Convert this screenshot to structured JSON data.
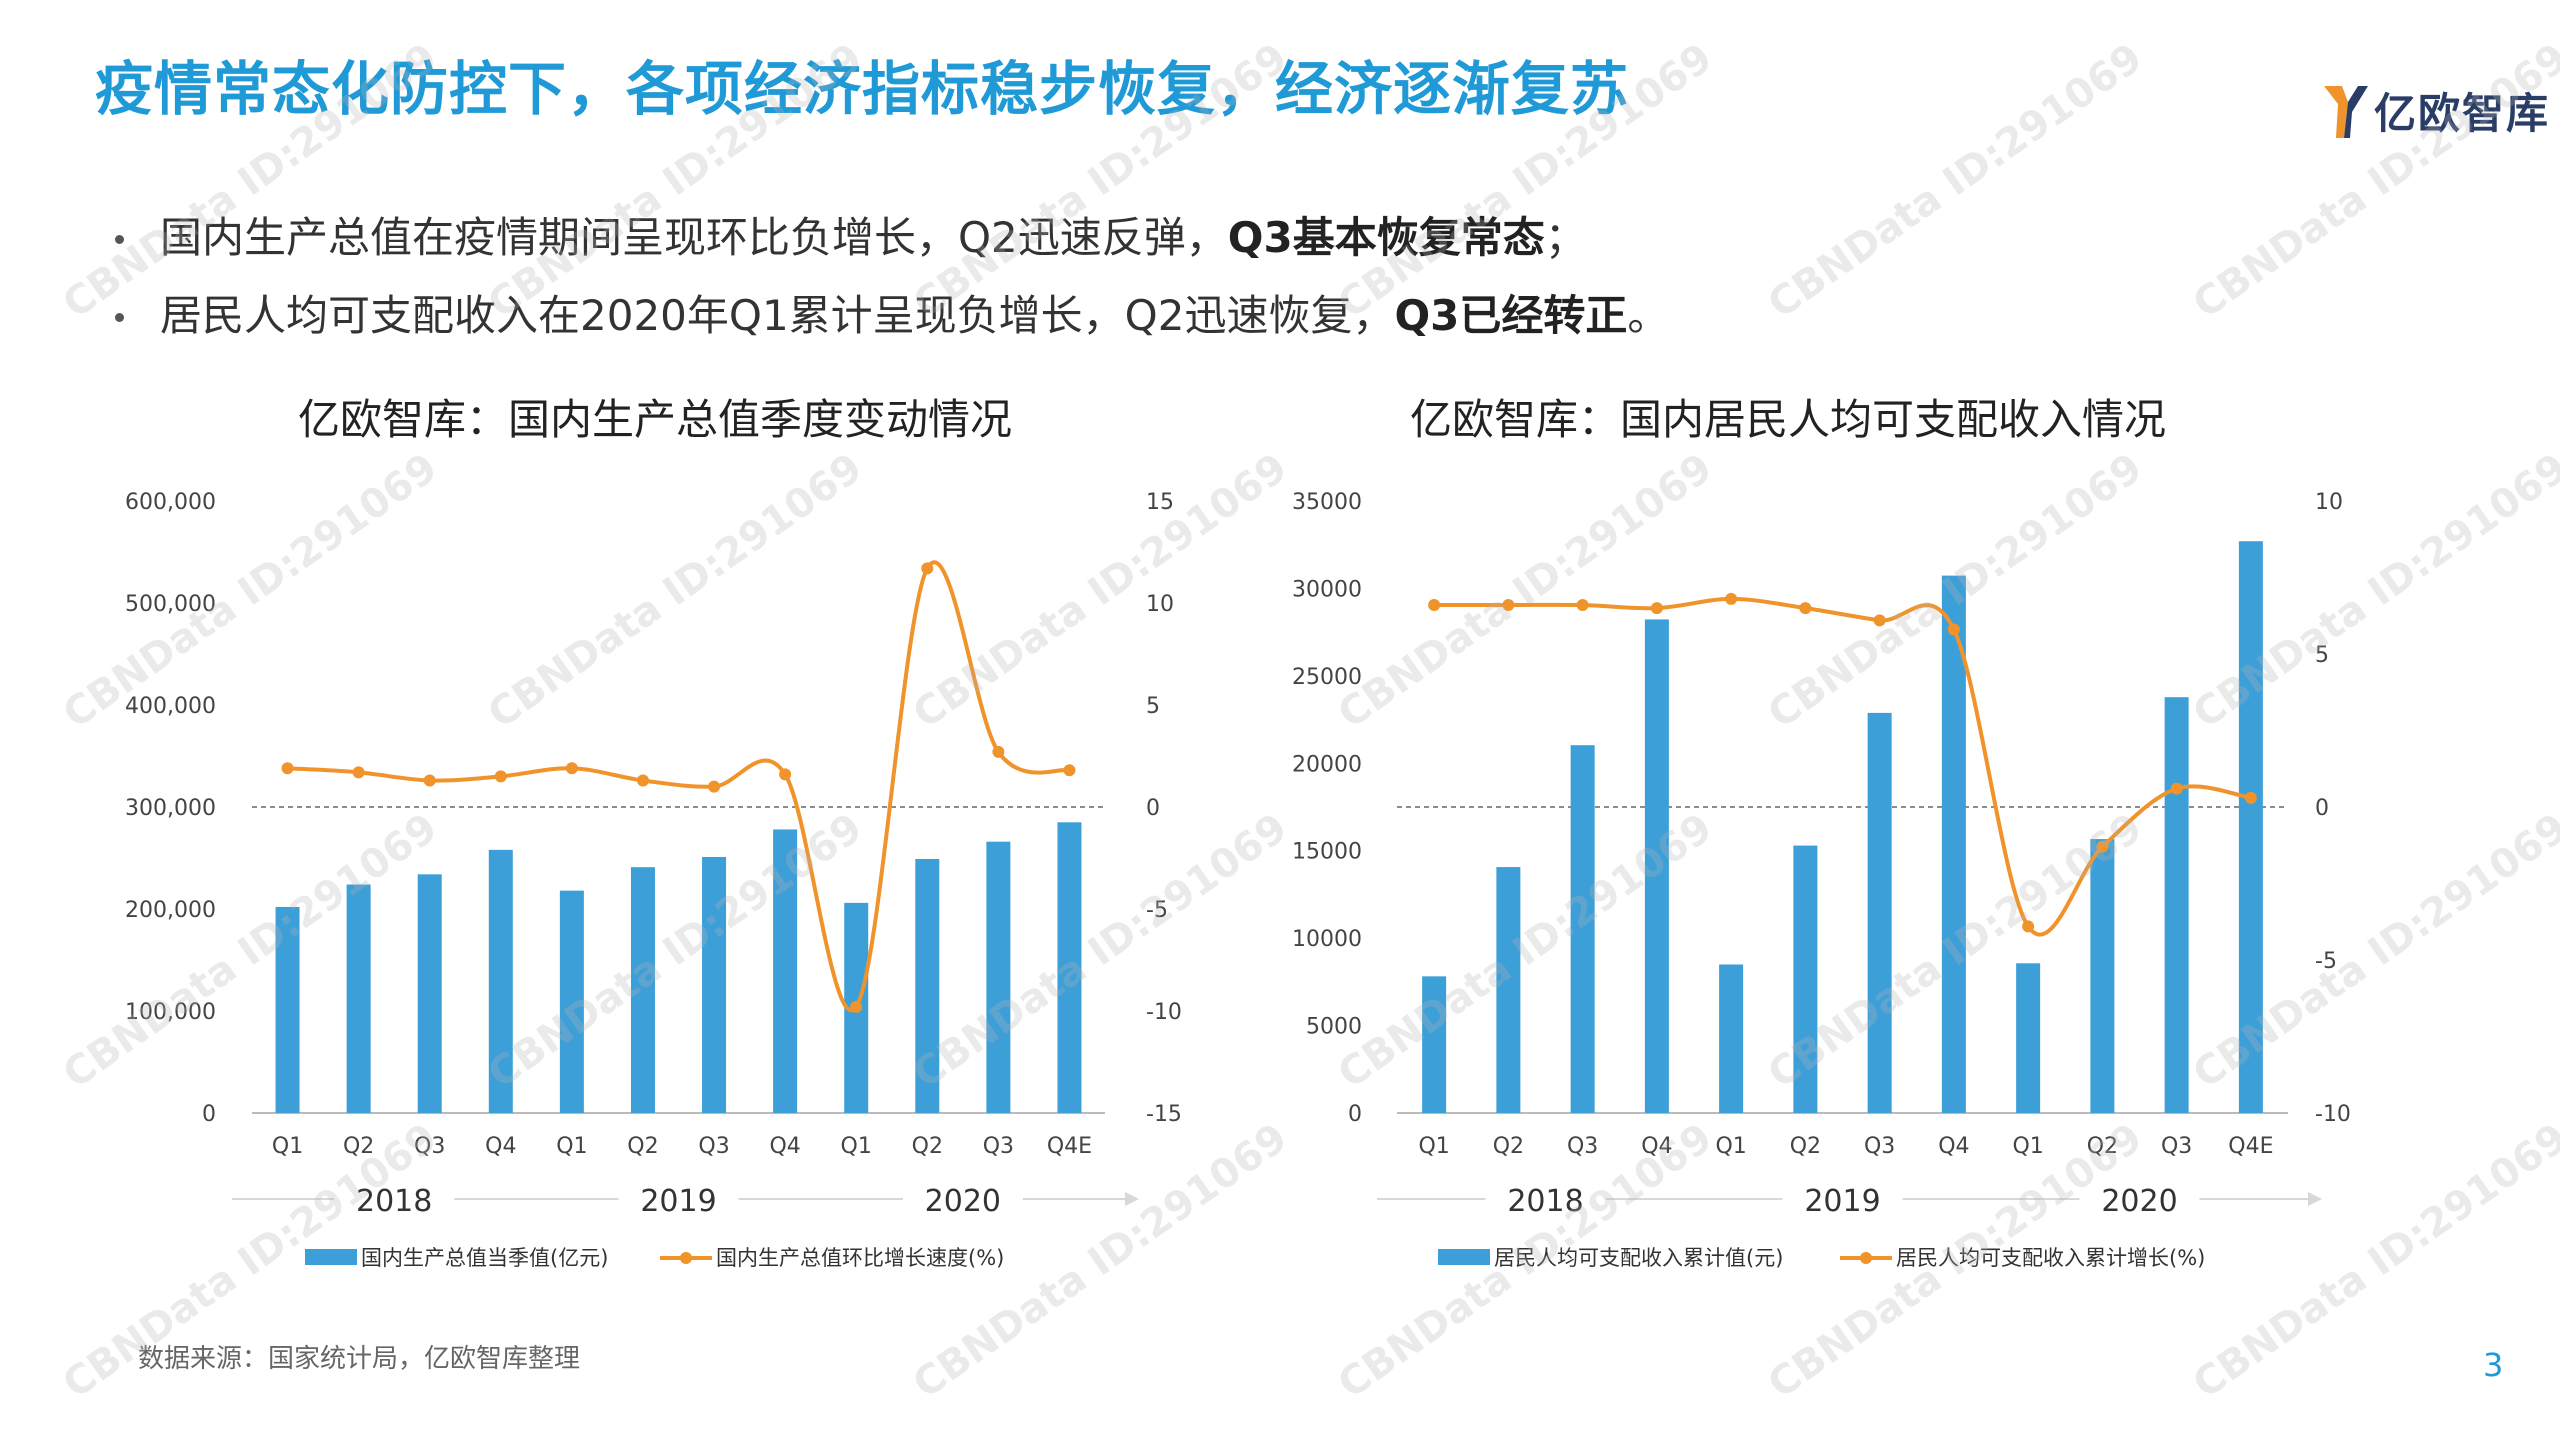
{
  "page": {
    "title": "疫情常态化防控下，各项经济指标稳步恢复，经济逐渐复苏",
    "logo_text": "亿欧智库",
    "bullets": [
      {
        "text": "国内生产总值在疫情期间呈现环比负增长，Q2迅速反弹，",
        "bold": "Q3基本恢复常态",
        "tail": "；"
      },
      {
        "text": "居民人均可支配收入在2020年Q1累计呈现负增长，Q2迅速恢复，",
        "bold": "Q3已经转正",
        "tail": "。"
      }
    ],
    "source": "数据来源：国家统计局，亿欧智库整理",
    "page_number": "3",
    "watermark": "CBNData ID:291069",
    "colors": {
      "accent": "#1f9ad6",
      "bar": "#3d9fd8",
      "line": "#f0932a"
    }
  },
  "chart_data": [
    {
      "type": "bar",
      "title": "亿欧智库：国内生产总值季度变动情况",
      "categories": [
        "Q1",
        "Q2",
        "Q3",
        "Q4",
        "Q1",
        "Q2",
        "Q3",
        "Q4",
        "Q1",
        "Q2",
        "Q3",
        "Q4E"
      ],
      "groups": [
        {
          "label": "2018",
          "count": 4
        },
        {
          "label": "2019",
          "count": 4
        },
        {
          "label": "2020",
          "count": 4
        }
      ],
      "series": [
        {
          "name": "国内生产总值当季值(亿元)",
          "type": "bar",
          "axis": "left",
          "values": [
            202000,
            224000,
            234000,
            258000,
            218000,
            241000,
            251000,
            278000,
            206000,
            249000,
            266000,
            285000
          ]
        },
        {
          "name": "国内生产总值环比增长速度(%)",
          "type": "line",
          "axis": "right",
          "values": [
            1.9,
            1.7,
            1.3,
            1.5,
            1.9,
            1.3,
            1.0,
            1.6,
            -9.8,
            11.7,
            2.7,
            1.8
          ]
        }
      ],
      "yleft": {
        "min": 0,
        "max": 600000,
        "ticks": [
          "0",
          "100,000",
          "200,000",
          "300,000",
          "400,000",
          "500,000",
          "600,000"
        ]
      },
      "yright": {
        "min": -15,
        "max": 15,
        "ticks": [
          "-15",
          "-10",
          "-5",
          "0",
          "5",
          "10",
          "15"
        ]
      },
      "legend_position": "bottom"
    },
    {
      "type": "bar",
      "title": "亿欧智库：国内居民人均可支配收入情况",
      "categories": [
        "Q1",
        "Q2",
        "Q3",
        "Q4",
        "Q1",
        "Q2",
        "Q3",
        "Q4",
        "Q1",
        "Q2",
        "Q3",
        "Q4E"
      ],
      "groups": [
        {
          "label": "2018",
          "count": 4
        },
        {
          "label": "2019",
          "count": 4
        },
        {
          "label": "2020",
          "count": 4
        }
      ],
      "series": [
        {
          "name": "居民人均可支配收入累计值(元)",
          "type": "bar",
          "axis": "left",
          "values": [
            7815,
            14063,
            21035,
            28228,
            8493,
            15294,
            22882,
            30733,
            8561,
            15666,
            23781,
            32700
          ]
        },
        {
          "name": "居民人均可支配收入累计增长(%)",
          "type": "line",
          "axis": "right",
          "values": [
            6.6,
            6.6,
            6.6,
            6.5,
            6.8,
            6.5,
            6.1,
            5.8,
            -3.9,
            -1.3,
            0.6,
            0.3
          ]
        }
      ],
      "yleft": {
        "min": 0,
        "max": 35000,
        "ticks": [
          "0",
          "5000",
          "10000",
          "15000",
          "20000",
          "25000",
          "30000",
          "35000"
        ]
      },
      "yright": {
        "min": -10,
        "max": 10,
        "ticks": [
          "-10",
          "-5",
          "0",
          "5",
          "10"
        ]
      },
      "legend_position": "bottom"
    }
  ]
}
